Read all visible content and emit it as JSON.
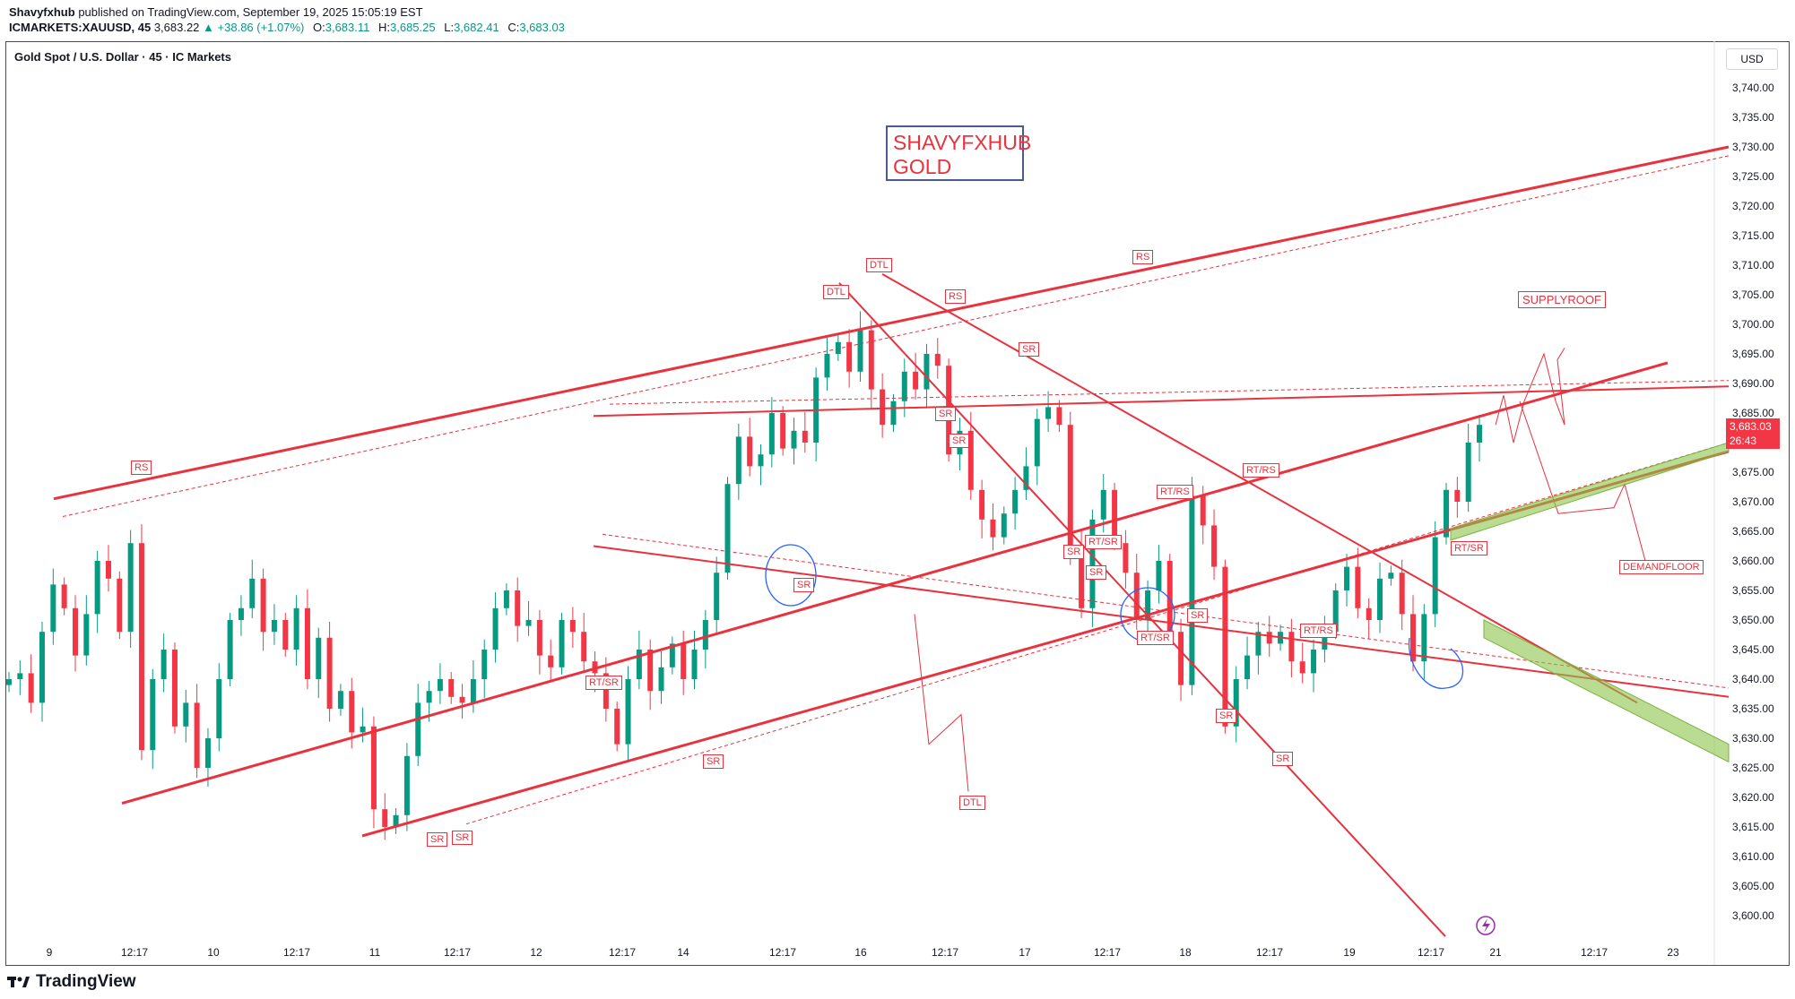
{
  "header": {
    "publisher": "Shavyfxhub",
    "published_text": "published on TradingView.com, September 19, 2025 15:05:19 EST",
    "symbol": "ICMARKETS:XAUUSD, 45",
    "last": "3,683.22",
    "change": "▲ +38.86 (+1.07%)",
    "o_label": "O:",
    "o": "3,683.11",
    "h_label": "H:",
    "h": "3,685.25",
    "l_label": "L:",
    "l": "3,682.41",
    "c_label": "C:",
    "c": "3,683.03"
  },
  "legend": "Gold Spot / U.S. Dollar · 45 · IC Markets",
  "currency": "USD",
  "price_badge": {
    "price": "3,683.03",
    "countdown": "26:43"
  },
  "brand_box": {
    "line1": "SHAVYFXHUB",
    "line2": "GOLD"
  },
  "footer": {
    "brand": "TradingView"
  },
  "colors": {
    "up": "#089981",
    "down": "#f23645",
    "annotation": "#e8323e",
    "circle": "#2962ff",
    "zone": "#8bc34a"
  },
  "chart_data": {
    "type": "candlestick",
    "title": "Gold Spot / U.S. Dollar · 45 · IC Markets",
    "ylim": [
      3596,
      3745
    ],
    "y_ticks": [
      "3,740.00",
      "3,735.00",
      "3,730.00",
      "3,725.00",
      "3,720.00",
      "3,715.00",
      "3,710.00",
      "3,705.00",
      "3,700.00",
      "3,695.00",
      "3,690.00",
      "3,685.00",
      "3,675.00",
      "3,670.00",
      "3,665.00",
      "3,660.00",
      "3,655.00",
      "3,650.00",
      "3,645.00",
      "3,640.00",
      "3,635.00",
      "3,630.00",
      "3,625.00",
      "3,620.00",
      "3,615.00",
      "3,610.00",
      "3,605.00",
      "3,600.00"
    ],
    "x_ticks": [
      "9",
      "12:17",
      "10",
      "12:17",
      "11",
      "12:17",
      "12",
      "12:17",
      "14",
      "12:17",
      "16",
      "12:17",
      "17",
      "12:17",
      "18",
      "12:17",
      "19",
      "12:17",
      "21",
      "12:17",
      "23"
    ],
    "close_path": [
      3640,
      3641,
      3636,
      3648,
      3656,
      3652,
      3644,
      3651,
      3660,
      3657,
      3648,
      3663,
      3628,
      3640,
      3645,
      3632,
      3636,
      3625,
      3630,
      3640,
      3650,
      3652,
      3657,
      3648,
      3650,
      3645,
      3652,
      3640,
      3647,
      3635,
      3638,
      3631,
      3632,
      3618,
      3615,
      3617,
      3627,
      3636,
      3638,
      3640,
      3637,
      3636,
      3640,
      3645,
      3652,
      3655,
      3649,
      3650,
      3644,
      3642,
      3650,
      3648,
      3643,
      3641,
      3635,
      3629,
      3640,
      3645,
      3638,
      3642,
      3646,
      3640,
      3645,
      3650,
      3658,
      3673,
      3681,
      3676,
      3678,
      3685,
      3679,
      3682,
      3680,
      3691,
      3695,
      3697,
      3692,
      3699,
      3689,
      3683,
      3687,
      3692,
      3689,
      3695,
      3693,
      3678,
      3682,
      3672,
      3667,
      3664,
      3668,
      3672,
      3676,
      3684,
      3686,
      3683,
      3662,
      3652,
      3667,
      3672,
      3663,
      3658,
      3650,
      3655,
      3660,
      3648,
      3639,
      3671,
      3666,
      3659,
      3632,
      3640,
      3644,
      3648,
      3646,
      3648,
      3643,
      3641,
      3645,
      3648,
      3655,
      3659,
      3652,
      3650,
      3657,
      3658,
      3651,
      3643,
      3651,
      3664,
      3672,
      3670,
      3680,
      3683
    ],
    "annotations": {
      "labels": [
        "RS",
        "DTL",
        "DTL",
        "RS",
        "RS",
        "SR",
        "SR",
        "SR",
        "RT/SR",
        "SR",
        "SR",
        "RT/RS",
        "RT/RS",
        "RT/SR",
        "SR",
        "RT/SR",
        "SR",
        "RT/RS",
        "SR",
        "SR",
        "RT/SR",
        "SR",
        "SR",
        "DTL",
        "SUPPLYROOF",
        "DEMANDFLOOR"
      ]
    }
  }
}
